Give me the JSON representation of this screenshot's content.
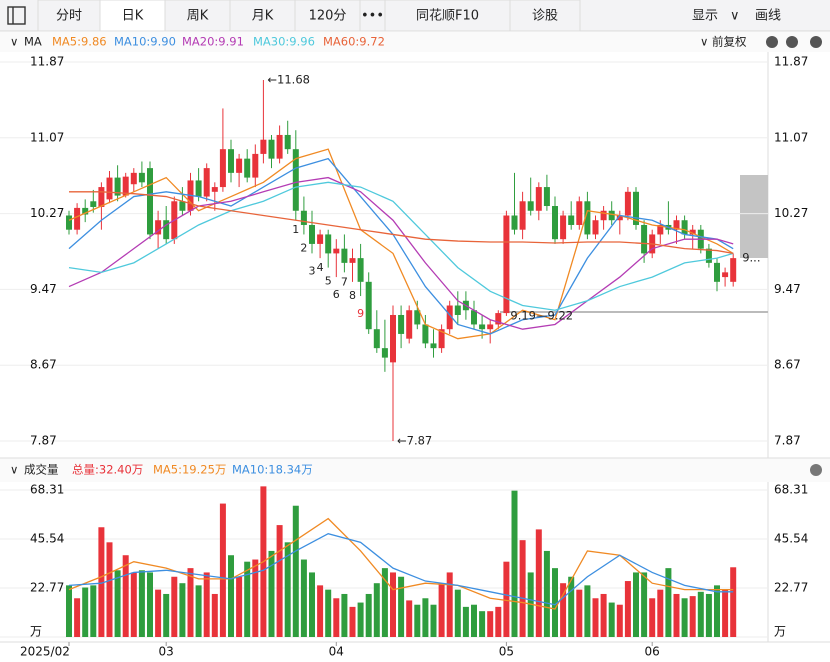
{
  "toolbar": {
    "tabs": [
      "分时",
      "日K",
      "周K",
      "月K",
      "120分",
      "•••",
      "同花顺F10",
      "诊股"
    ],
    "active": 1,
    "right": [
      "显示",
      "画线"
    ]
  },
  "indicator": "MA",
  "adjust": "前复权",
  "chart_data": [
    {
      "type": "candlestick",
      "open": [
        10.25,
        10.1,
        10.33,
        10.4,
        10.34,
        10.42,
        10.65,
        10.46,
        10.58,
        10.7,
        10.75,
        10.05,
        10.2,
        10.0,
        10.4,
        10.3,
        10.62,
        10.45,
        10.5,
        10.55,
        10.95,
        10.7,
        10.85,
        10.65,
        10.9,
        11.05,
        10.85,
        11.1,
        10.95,
        10.3,
        10.15,
        9.95,
        10.05,
        9.85,
        9.9,
        9.75,
        9.8,
        9.55,
        9.05,
        8.85,
        8.7,
        9.2,
        8.95,
        9.25,
        9.1,
        8.9,
        8.85,
        9.05,
        9.3,
        9.35,
        9.25,
        9.1,
        9.05,
        9.1,
        9.22,
        10.25,
        10.1,
        10.4,
        10.3,
        10.55,
        10.35,
        10.0,
        10.25,
        10.15,
        10.4,
        10.05,
        10.2,
        10.3,
        10.2,
        10.25,
        10.5,
        10.15,
        9.85,
        10.05,
        10.15,
        10.1,
        10.2,
        10.05,
        10.1,
        9.9,
        9.75,
        9.6,
        9.55
      ],
      "high": [
        10.3,
        10.38,
        10.42,
        10.52,
        10.6,
        10.72,
        10.78,
        10.7,
        10.75,
        10.82,
        10.82,
        10.3,
        10.35,
        10.45,
        10.55,
        10.7,
        10.75,
        10.8,
        10.6,
        11.38,
        11.05,
        10.9,
        10.95,
        11.0,
        11.68,
        11.1,
        11.2,
        11.25,
        11.15,
        10.45,
        10.3,
        10.1,
        10.1,
        10.0,
        10.05,
        9.9,
        9.95,
        9.65,
        9.25,
        9.15,
        9.3,
        9.3,
        9.3,
        9.35,
        9.2,
        9.05,
        9.1,
        9.35,
        9.45,
        9.45,
        9.35,
        9.2,
        9.15,
        9.25,
        10.3,
        10.7,
        10.5,
        10.65,
        10.6,
        10.68,
        10.45,
        10.3,
        10.4,
        10.45,
        10.5,
        10.25,
        10.35,
        10.4,
        10.3,
        10.55,
        10.55,
        10.2,
        10.1,
        10.2,
        10.4,
        10.25,
        10.25,
        10.15,
        10.15,
        9.95,
        9.8,
        9.7,
        9.85
      ],
      "low": [
        10.05,
        10.05,
        10.18,
        10.28,
        10.1,
        10.38,
        10.4,
        10.44,
        10.5,
        10.55,
        10.0,
        9.9,
        9.95,
        9.95,
        10.25,
        10.25,
        10.4,
        10.4,
        10.3,
        10.5,
        10.6,
        10.55,
        10.6,
        10.55,
        10.8,
        10.75,
        10.8,
        10.9,
        10.2,
        10.05,
        9.85,
        9.8,
        9.7,
        9.6,
        9.65,
        9.55,
        9.4,
        9.0,
        8.8,
        8.6,
        7.87,
        8.85,
        8.9,
        9.05,
        8.85,
        8.75,
        8.8,
        9.0,
        9.1,
        9.15,
        9.05,
        8.95,
        8.9,
        9.05,
        9.19,
        10.05,
        10.0,
        10.25,
        10.2,
        10.3,
        9.95,
        9.95,
        10.1,
        10.1,
        10.0,
        10.0,
        10.1,
        10.15,
        10.05,
        10.2,
        10.1,
        9.75,
        9.8,
        9.95,
        10.05,
        9.95,
        10.0,
        9.9,
        9.85,
        9.7,
        9.45,
        9.5,
        9.5
      ],
      "close": [
        10.1,
        10.33,
        10.26,
        10.34,
        10.55,
        10.65,
        10.46,
        10.66,
        10.7,
        10.6,
        10.05,
        10.2,
        10.0,
        10.4,
        10.3,
        10.62,
        10.45,
        10.75,
        10.55,
        10.95,
        10.7,
        10.85,
        10.65,
        10.9,
        11.05,
        10.85,
        11.1,
        10.95,
        10.3,
        10.15,
        9.95,
        10.05,
        9.85,
        9.9,
        9.75,
        9.8,
        9.55,
        9.05,
        8.85,
        8.75,
        9.2,
        9.0,
        9.25,
        9.1,
        8.9,
        8.85,
        9.05,
        9.3,
        9.2,
        9.25,
        9.1,
        9.05,
        9.1,
        9.22,
        10.25,
        10.1,
        10.4,
        10.3,
        10.55,
        10.35,
        10.0,
        10.25,
        10.15,
        10.4,
        10.05,
        10.2,
        10.3,
        10.2,
        10.25,
        10.5,
        10.15,
        9.85,
        10.05,
        10.15,
        10.1,
        10.2,
        10.05,
        10.1,
        9.9,
        9.75,
        9.55,
        9.65,
        9.8
      ],
      "up_color": "#e8333a",
      "down_color": "#2f9d3e",
      "ylim": [
        7.87,
        11.87
      ],
      "yticks": [
        7.87,
        8.67,
        9.47,
        10.27,
        11.07,
        11.87
      ],
      "series": [
        {
          "name": "MA5:9.86",
          "color": "#f08a24",
          "x": [
            0,
            4,
            8,
            12,
            16,
            20,
            24,
            28,
            32,
            36,
            40,
            44,
            48,
            52,
            56,
            60,
            64,
            68,
            72,
            76,
            80,
            82
          ],
          "values": [
            10.2,
            10.35,
            10.5,
            10.65,
            10.3,
            10.45,
            10.6,
            10.85,
            10.95,
            10.1,
            9.85,
            9.1,
            8.95,
            9.0,
            9.25,
            9.15,
            10.3,
            10.25,
            10.15,
            10.1,
            9.95,
            9.85
          ]
        },
        {
          "name": "MA10:9.90",
          "color": "#3d8fe0",
          "x": [
            0,
            4,
            8,
            12,
            16,
            20,
            24,
            28,
            32,
            36,
            40,
            44,
            48,
            52,
            56,
            60,
            64,
            68,
            72,
            76,
            80,
            82
          ],
          "values": [
            9.9,
            10.2,
            10.45,
            10.5,
            10.45,
            10.35,
            10.55,
            10.75,
            10.85,
            10.45,
            10.05,
            9.5,
            9.1,
            9.0,
            9.15,
            9.2,
            9.8,
            10.25,
            10.2,
            10.05,
            10.0,
            9.9
          ]
        },
        {
          "name": "MA20:9.91",
          "color": "#b43cb4",
          "x": [
            0,
            4,
            8,
            12,
            16,
            20,
            24,
            28,
            32,
            36,
            40,
            44,
            48,
            52,
            56,
            60,
            64,
            68,
            72,
            76,
            80,
            82
          ],
          "values": [
            9.5,
            9.65,
            9.9,
            10.15,
            10.35,
            10.4,
            10.5,
            10.6,
            10.65,
            10.5,
            10.2,
            9.75,
            9.35,
            9.15,
            9.05,
            9.1,
            9.35,
            9.6,
            9.9,
            10.0,
            10.0,
            9.95
          ]
        },
        {
          "name": "MA30:9.96",
          "color": "#4fc9dc",
          "x": [
            0,
            4,
            8,
            12,
            16,
            20,
            24,
            28,
            32,
            36,
            40,
            44,
            48,
            52,
            56,
            60,
            64,
            68,
            72,
            76,
            80,
            82
          ],
          "values": [
            9.7,
            9.65,
            9.75,
            9.95,
            10.15,
            10.3,
            10.4,
            10.55,
            10.6,
            10.55,
            10.4,
            10.05,
            9.7,
            9.45,
            9.3,
            9.25,
            9.35,
            9.5,
            9.6,
            9.75,
            9.8,
            9.85
          ]
        },
        {
          "name": "MA60:9.72",
          "color": "#e8643a",
          "x": [
            0,
            4,
            8,
            12,
            16,
            20,
            24,
            28,
            32,
            36,
            40,
            44,
            48,
            52,
            56,
            60,
            64,
            68,
            72,
            76,
            80,
            82
          ],
          "values": [
            10.5,
            10.5,
            10.48,
            10.45,
            10.35,
            10.3,
            10.25,
            10.2,
            10.15,
            10.1,
            10.05,
            10.0,
            9.98,
            9.97,
            9.97,
            9.96,
            9.97,
            9.97,
            9.95,
            9.9,
            9.88,
            9.85
          ]
        }
      ],
      "annotations": [
        {
          "text": "←11.68",
          "index": 24,
          "at": "high"
        },
        {
          "text": "←7.87",
          "index": 40,
          "at": "low"
        },
        {
          "text": "9.19—9.22",
          "index": 54,
          "at": "low"
        }
      ],
      "markers": [
        {
          "label": "1",
          "index": 28
        },
        {
          "label": "2",
          "index": 29
        },
        {
          "label": "3",
          "index": 30
        },
        {
          "label": "4",
          "index": 31
        },
        {
          "label": "5",
          "index": 32
        },
        {
          "label": "6",
          "index": 33
        },
        {
          "label": "7",
          "index": 34
        },
        {
          "label": "8",
          "index": 35
        },
        {
          "label": "9",
          "index": 36
        }
      ],
      "last_label": "9..."
    },
    {
      "type": "bar",
      "title": "成交量",
      "total_label": "总量:32.40万",
      "values": [
        24,
        18,
        23,
        24,
        51,
        44,
        31,
        38,
        30,
        31,
        30,
        22,
        20,
        28,
        25,
        32,
        24,
        30,
        20,
        62,
        38,
        28,
        35,
        36,
        70,
        40,
        52,
        44,
        61,
        36,
        30,
        24,
        22,
        18,
        20,
        14,
        16,
        20,
        25,
        32,
        30,
        28,
        17,
        15,
        18,
        15,
        25,
        30,
        22,
        14,
        15,
        12,
        12,
        14,
        35,
        68,
        45,
        30,
        50,
        40,
        32,
        25,
        28,
        22,
        24,
        18,
        20,
        16,
        15,
        26,
        30,
        30,
        18,
        22,
        32,
        20,
        18,
        19,
        21,
        20,
        24,
        22,
        32.4
      ],
      "ylim": [
        0,
        68.31
      ],
      "yticks": [
        {
          "value": 0,
          "label": "万"
        },
        22.77,
        45.54,
        68.31
      ],
      "series": [
        {
          "name": "MA5:19.25万",
          "color": "#f08a24",
          "x": [
            0,
            4,
            8,
            12,
            16,
            20,
            24,
            28,
            32,
            36,
            40,
            44,
            48,
            52,
            56,
            60,
            64,
            68,
            72,
            76,
            80,
            82
          ],
          "values": [
            22,
            28,
            35,
            32,
            27,
            27,
            35,
            45,
            55,
            40,
            22,
            25,
            24,
            18,
            16,
            13,
            40,
            38,
            25,
            22,
            22,
            22
          ]
        },
        {
          "name": "MA10:18.34万",
          "color": "#3d8fe0",
          "x": [
            0,
            4,
            8,
            12,
            16,
            20,
            24,
            28,
            32,
            36,
            40,
            44,
            48,
            52,
            56,
            60,
            64,
            68,
            72,
            76,
            80,
            82
          ],
          "values": [
            24,
            25,
            30,
            31,
            29,
            27,
            31,
            40,
            48,
            44,
            32,
            26,
            24,
            21,
            18,
            15,
            28,
            38,
            30,
            24,
            21,
            21
          ]
        }
      ],
      "xticks": [
        {
          "value": 0,
          "label": "2025/02"
        },
        {
          "value": 12,
          "label": "03"
        },
        {
          "value": 33,
          "label": "04"
        },
        {
          "value": 54,
          "label": "05"
        },
        {
          "value": 72,
          "label": "06"
        }
      ]
    }
  ]
}
